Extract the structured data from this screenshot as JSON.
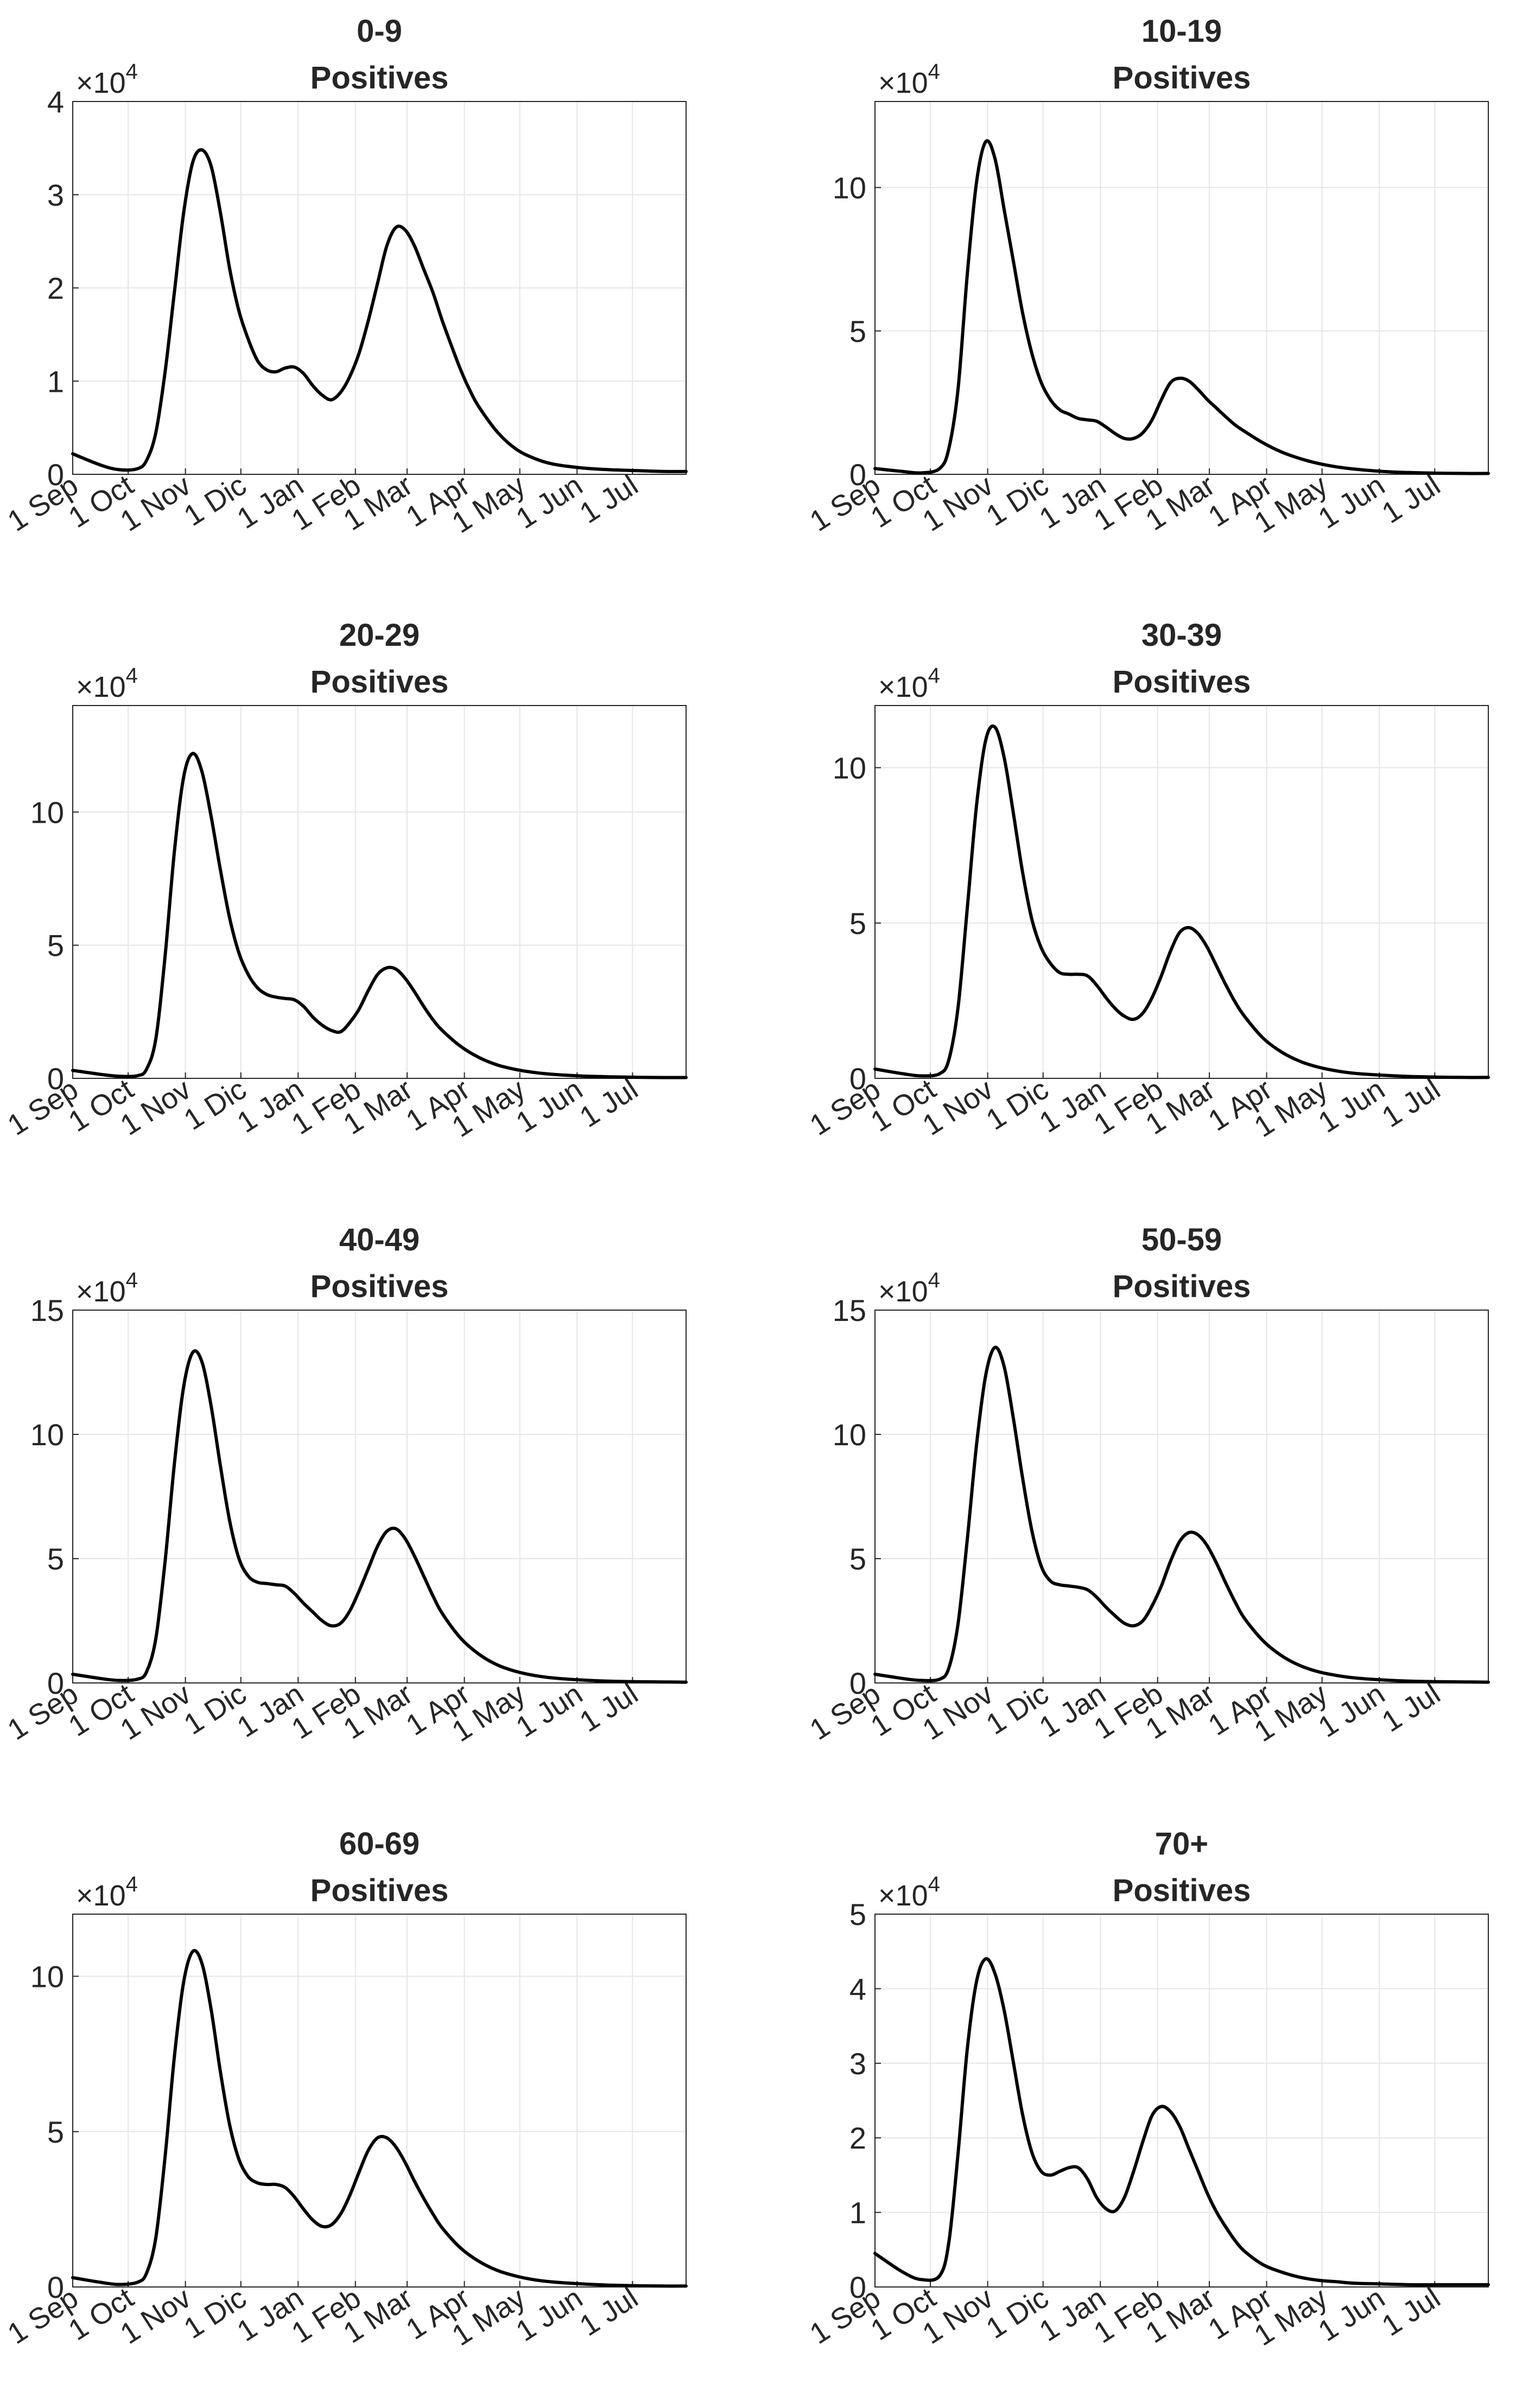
{
  "figure": {
    "x_tick_labels": [
      "1 Sep",
      "1 Oct",
      "1 Nov",
      "1 Dic",
      "1 Jan",
      "1 Feb",
      "1 Mar",
      "1 Apr",
      "1 May",
      "1 Jun",
      "1 Jul"
    ],
    "line_color": "#000000",
    "grid_color": "#e6e6e6"
  },
  "chart_data": [
    {
      "type": "line",
      "title": "0-9",
      "subtitle": "Positives",
      "exponent_label": "×10",
      "exponent_power": "4",
      "xlabel": "",
      "ylabel": "",
      "xlim": [
        0,
        332
      ],
      "ylim": [
        0,
        4
      ],
      "yticks": [
        0,
        1,
        2,
        3,
        4
      ],
      "grid": true,
      "series": [
        {
          "name": "Positives",
          "x": [
            0,
            15,
            25,
            35,
            40,
            45,
            50,
            55,
            60,
            65,
            70,
            75,
            80,
            85,
            90,
            95,
            100,
            105,
            110,
            115,
            120,
            125,
            130,
            135,
            140,
            145,
            150,
            155,
            160,
            165,
            170,
            175,
            180,
            185,
            190,
            195,
            200,
            205,
            210,
            215,
            220,
            230,
            240,
            250,
            260,
            275,
            290,
            305,
            320,
            332
          ],
          "y": [
            0.22,
            0.1,
            0.05,
            0.06,
            0.15,
            0.45,
            1.1,
            1.95,
            2.8,
            3.35,
            3.48,
            3.3,
            2.8,
            2.2,
            1.75,
            1.45,
            1.22,
            1.12,
            1.1,
            1.14,
            1.15,
            1.08,
            0.95,
            0.85,
            0.8,
            0.88,
            1.05,
            1.3,
            1.65,
            2.05,
            2.45,
            2.65,
            2.62,
            2.45,
            2.2,
            1.95,
            1.65,
            1.38,
            1.12,
            0.9,
            0.72,
            0.45,
            0.27,
            0.17,
            0.11,
            0.07,
            0.05,
            0.04,
            0.03,
            0.03
          ]
        }
      ]
    },
    {
      "type": "line",
      "title": "10-19",
      "subtitle": "Positives",
      "exponent_label": "×10",
      "exponent_power": "4",
      "xlabel": "",
      "ylabel": "",
      "xlim": [
        0,
        332
      ],
      "ylim": [
        0,
        13
      ],
      "yticks": [
        0,
        5,
        10
      ],
      "grid": true,
      "series": [
        {
          "name": "Positives",
          "x": [
            0,
            15,
            25,
            35,
            40,
            45,
            50,
            55,
            60,
            65,
            70,
            75,
            80,
            85,
            90,
            95,
            100,
            105,
            110,
            115,
            120,
            125,
            130,
            135,
            140,
            145,
            150,
            155,
            160,
            165,
            170,
            175,
            180,
            185,
            190,
            195,
            200,
            210,
            220,
            230,
            240,
            250,
            260,
            275,
            290,
            305,
            320,
            332
          ],
          "y": [
            0.2,
            0.1,
            0.05,
            0.2,
            0.9,
            3.0,
            7.0,
            10.2,
            11.6,
            11.0,
            9.2,
            7.4,
            5.6,
            4.2,
            3.2,
            2.6,
            2.25,
            2.1,
            1.95,
            1.9,
            1.85,
            1.65,
            1.42,
            1.25,
            1.25,
            1.45,
            1.9,
            2.6,
            3.2,
            3.35,
            3.25,
            2.95,
            2.6,
            2.3,
            2.0,
            1.72,
            1.5,
            1.1,
            0.78,
            0.55,
            0.38,
            0.26,
            0.18,
            0.1,
            0.06,
            0.04,
            0.03,
            0.03
          ]
        }
      ]
    },
    {
      "type": "line",
      "title": "20-29",
      "subtitle": "Positives",
      "exponent_label": "×10",
      "exponent_power": "4",
      "xlabel": "",
      "ylabel": "",
      "xlim": [
        0,
        332
      ],
      "ylim": [
        0,
        14
      ],
      "yticks": [
        0,
        5,
        10
      ],
      "grid": true,
      "series": [
        {
          "name": "Positives",
          "x": [
            0,
            15,
            25,
            35,
            40,
            45,
            50,
            55,
            60,
            65,
            70,
            75,
            80,
            85,
            90,
            95,
            100,
            105,
            110,
            115,
            120,
            125,
            130,
            135,
            140,
            145,
            150,
            155,
            160,
            165,
            170,
            175,
            180,
            185,
            190,
            195,
            200,
            210,
            220,
            230,
            240,
            250,
            260,
            275,
            290,
            305,
            320,
            332
          ],
          "y": [
            0.3,
            0.15,
            0.08,
            0.1,
            0.35,
            1.5,
            4.6,
            8.5,
            11.3,
            12.2,
            11.5,
            9.8,
            7.8,
            6.0,
            4.7,
            3.9,
            3.4,
            3.15,
            3.05,
            3.0,
            2.95,
            2.7,
            2.3,
            2.0,
            1.8,
            1.75,
            2.1,
            2.6,
            3.3,
            3.9,
            4.15,
            4.1,
            3.75,
            3.25,
            2.7,
            2.2,
            1.8,
            1.2,
            0.78,
            0.5,
            0.33,
            0.22,
            0.15,
            0.09,
            0.06,
            0.04,
            0.03,
            0.03
          ]
        }
      ]
    },
    {
      "type": "line",
      "title": "30-39",
      "subtitle": "Positives",
      "exponent_label": "×10",
      "exponent_power": "4",
      "xlabel": "",
      "ylabel": "",
      "xlim": [
        0,
        332
      ],
      "ylim": [
        0,
        12
      ],
      "yticks": [
        0,
        5,
        10
      ],
      "grid": true,
      "series": [
        {
          "name": "Positives",
          "x": [
            0,
            15,
            25,
            35,
            40,
            45,
            50,
            55,
            60,
            65,
            70,
            75,
            80,
            85,
            90,
            95,
            100,
            105,
            110,
            115,
            120,
            125,
            130,
            135,
            140,
            145,
            150,
            155,
            160,
            165,
            170,
            175,
            180,
            185,
            190,
            195,
            200,
            210,
            220,
            230,
            240,
            250,
            260,
            275,
            290,
            305,
            320,
            332
          ],
          "y": [
            0.3,
            0.15,
            0.08,
            0.15,
            0.6,
            2.3,
            5.5,
            8.8,
            10.9,
            11.3,
            10.3,
            8.5,
            6.6,
            5.1,
            4.2,
            3.7,
            3.4,
            3.35,
            3.35,
            3.3,
            3.0,
            2.6,
            2.25,
            2.0,
            1.9,
            2.1,
            2.6,
            3.3,
            4.1,
            4.7,
            4.85,
            4.65,
            4.2,
            3.6,
            3.0,
            2.45,
            2.0,
            1.3,
            0.85,
            0.55,
            0.36,
            0.24,
            0.16,
            0.1,
            0.06,
            0.04,
            0.03,
            0.03
          ]
        }
      ]
    },
    {
      "type": "line",
      "title": "40-49",
      "subtitle": "Positives",
      "exponent_label": "×10",
      "exponent_power": "4",
      "xlabel": "",
      "ylabel": "",
      "xlim": [
        0,
        332
      ],
      "ylim": [
        0,
        15
      ],
      "yticks": [
        0,
        5,
        10,
        15
      ],
      "grid": true,
      "series": [
        {
          "name": "Positives",
          "x": [
            0,
            15,
            25,
            35,
            40,
            45,
            50,
            55,
            60,
            65,
            70,
            75,
            80,
            85,
            90,
            95,
            100,
            105,
            110,
            115,
            120,
            125,
            130,
            135,
            140,
            145,
            150,
            155,
            160,
            165,
            170,
            175,
            180,
            185,
            190,
            195,
            200,
            210,
            220,
            230,
            240,
            250,
            260,
            275,
            290,
            305,
            320,
            332
          ],
          "y": [
            0.35,
            0.18,
            0.1,
            0.15,
            0.45,
            1.8,
            4.9,
            8.8,
            11.9,
            13.3,
            12.9,
            11.1,
            8.7,
            6.5,
            5.0,
            4.3,
            4.05,
            4.0,
            3.95,
            3.9,
            3.6,
            3.2,
            2.85,
            2.5,
            2.3,
            2.4,
            2.9,
            3.7,
            4.6,
            5.5,
            6.1,
            6.2,
            5.8,
            5.1,
            4.3,
            3.5,
            2.8,
            1.8,
            1.15,
            0.72,
            0.46,
            0.3,
            0.2,
            0.12,
            0.07,
            0.05,
            0.04,
            0.03
          ]
        }
      ]
    },
    {
      "type": "line",
      "title": "50-59",
      "subtitle": "Positives",
      "exponent_label": "×10",
      "exponent_power": "4",
      "xlabel": "",
      "ylabel": "",
      "xlim": [
        0,
        332
      ],
      "ylim": [
        0,
        15
      ],
      "yticks": [
        0,
        5,
        10,
        15
      ],
      "grid": true,
      "series": [
        {
          "name": "Positives",
          "x": [
            0,
            15,
            25,
            35,
            40,
            45,
            50,
            55,
            60,
            65,
            70,
            75,
            80,
            85,
            90,
            95,
            100,
            105,
            110,
            115,
            120,
            125,
            130,
            135,
            140,
            145,
            150,
            155,
            160,
            165,
            170,
            175,
            180,
            185,
            190,
            195,
            200,
            210,
            220,
            230,
            240,
            250,
            260,
            275,
            290,
            305,
            320,
            332
          ],
          "y": [
            0.35,
            0.18,
            0.1,
            0.15,
            0.6,
            2.4,
            5.8,
            9.6,
            12.4,
            13.5,
            12.7,
            10.6,
            8.2,
            6.1,
            4.7,
            4.1,
            3.95,
            3.9,
            3.85,
            3.75,
            3.45,
            3.05,
            2.7,
            2.4,
            2.3,
            2.5,
            3.1,
            3.9,
            4.9,
            5.7,
            6.05,
            5.95,
            5.5,
            4.8,
            4.0,
            3.25,
            2.6,
            1.7,
            1.1,
            0.7,
            0.45,
            0.3,
            0.2,
            0.12,
            0.07,
            0.05,
            0.04,
            0.03
          ]
        }
      ]
    },
    {
      "type": "line",
      "title": "60-69",
      "subtitle": "Positives",
      "exponent_label": "×10",
      "exponent_power": "4",
      "xlabel": "",
      "ylabel": "",
      "xlim": [
        0,
        332
      ],
      "ylim": [
        0,
        12
      ],
      "yticks": [
        0,
        5,
        10
      ],
      "grid": true,
      "series": [
        {
          "name": "Positives",
          "x": [
            0,
            15,
            25,
            35,
            40,
            45,
            50,
            55,
            60,
            65,
            70,
            75,
            80,
            85,
            90,
            95,
            100,
            105,
            110,
            115,
            120,
            125,
            130,
            135,
            140,
            145,
            150,
            155,
            160,
            165,
            170,
            175,
            180,
            185,
            190,
            195,
            200,
            210,
            220,
            230,
            240,
            250,
            260,
            275,
            290,
            305,
            320,
            332
          ],
          "y": [
            0.3,
            0.15,
            0.08,
            0.15,
            0.45,
            1.6,
            4.2,
            7.4,
            9.8,
            10.8,
            10.4,
            8.9,
            6.9,
            5.2,
            4.1,
            3.55,
            3.35,
            3.3,
            3.3,
            3.2,
            2.9,
            2.5,
            2.15,
            1.95,
            2.0,
            2.35,
            2.95,
            3.7,
            4.4,
            4.8,
            4.8,
            4.5,
            4.0,
            3.4,
            2.85,
            2.35,
            1.9,
            1.25,
            0.82,
            0.53,
            0.35,
            0.23,
            0.16,
            0.1,
            0.06,
            0.04,
            0.03,
            0.03
          ]
        }
      ]
    },
    {
      "type": "line",
      "title": "70+",
      "subtitle": "Positives",
      "exponent_label": "×10",
      "exponent_power": "4",
      "xlabel": "",
      "ylabel": "",
      "xlim": [
        0,
        332
      ],
      "ylim": [
        0,
        5
      ],
      "yticks": [
        0,
        1,
        2,
        3,
        4,
        5
      ],
      "grid": true,
      "series": [
        {
          "name": "Positives",
          "x": [
            0,
            15,
            25,
            35,
            40,
            45,
            50,
            55,
            60,
            65,
            70,
            75,
            80,
            85,
            90,
            95,
            100,
            105,
            110,
            115,
            120,
            125,
            130,
            135,
            140,
            145,
            150,
            155,
            160,
            165,
            170,
            175,
            180,
            185,
            190,
            195,
            200,
            210,
            220,
            230,
            240,
            250,
            260,
            275,
            290,
            305,
            320,
            332
          ],
          "y": [
            0.45,
            0.2,
            0.1,
            0.15,
            0.6,
            1.8,
            3.2,
            4.1,
            4.4,
            4.2,
            3.7,
            3.0,
            2.3,
            1.8,
            1.55,
            1.5,
            1.55,
            1.6,
            1.6,
            1.45,
            1.2,
            1.05,
            1.02,
            1.2,
            1.55,
            1.95,
            2.3,
            2.42,
            2.35,
            2.15,
            1.85,
            1.55,
            1.25,
            1.0,
            0.8,
            0.62,
            0.48,
            0.3,
            0.2,
            0.13,
            0.09,
            0.07,
            0.05,
            0.04,
            0.03,
            0.03,
            0.03,
            0.03
          ]
        }
      ]
    }
  ]
}
